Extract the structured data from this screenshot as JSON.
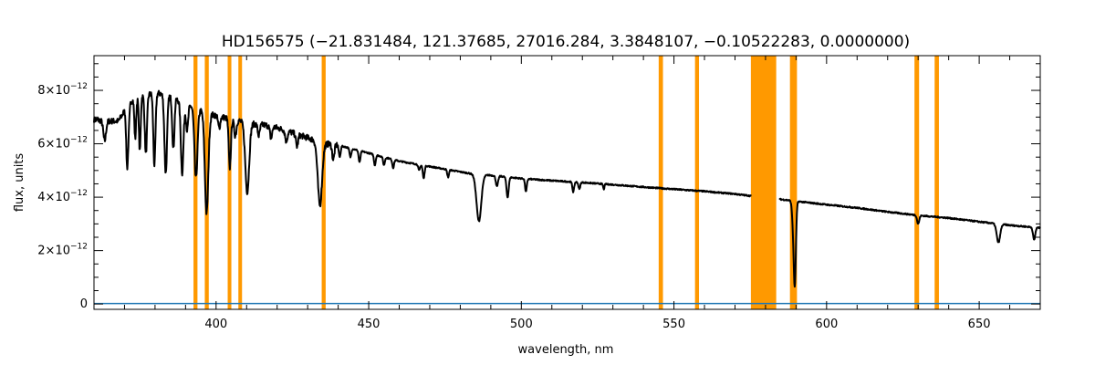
{
  "chart_data": {
    "type": "line",
    "title": "HD156575    (−21.831484, 121.37685, 27016.284, 3.3848107, −0.10522283, 0.0000000)",
    "xlabel": "wavelength, nm",
    "ylabel": "flux, units",
    "xlim": [
      360,
      670
    ],
    "ylim": [
      -2e-13,
      9.3e-12
    ],
    "x_ticks": [
      400,
      450,
      500,
      550,
      600,
      650
    ],
    "y_ticks": [
      {
        "value": 0,
        "label": "0"
      },
      {
        "value": 2e-12,
        "label": "2×10",
        "exp": "−12"
      },
      {
        "value": 4e-12,
        "label": "4×10",
        "exp": "−12"
      },
      {
        "value": 6e-12,
        "label": "6×10",
        "exp": "−12"
      },
      {
        "value": 8e-12,
        "label": "8×10",
        "exp": "−12"
      }
    ],
    "grid": false,
    "colors": {
      "spectrum": "#000000",
      "masks": "#ff9900",
      "error": "#1f77b4",
      "axes": "#000000"
    },
    "masked_regions": [
      [
        392.6,
        393.9
      ],
      [
        396.3,
        397.6
      ],
      [
        403.8,
        405.0
      ],
      [
        407.3,
        408.5
      ],
      [
        434.6,
        435.9
      ],
      [
        545.0,
        546.4
      ],
      [
        556.9,
        558.2
      ],
      [
        575.2,
        583.5
      ],
      [
        588.0,
        590.3
      ],
      [
        628.8,
        630.3
      ],
      [
        635.4,
        636.8
      ]
    ],
    "series": [
      {
        "kind": "spectrum",
        "continuum": [
          [
            360,
            6.9e-12
          ],
          [
            364,
            6.85e-12
          ],
          [
            368,
            6.85e-12
          ],
          [
            372,
            7.6e-12
          ],
          [
            376,
            7.8e-12
          ],
          [
            380,
            7.9e-12
          ],
          [
            384,
            7.85e-12
          ],
          [
            388,
            7.6e-12
          ],
          [
            392,
            7.4e-12
          ],
          [
            396,
            7.2e-12
          ],
          [
            400,
            7.05e-12
          ],
          [
            404,
            6.95e-12
          ],
          [
            408,
            6.85e-12
          ],
          [
            412,
            6.75e-12
          ],
          [
            416,
            6.7e-12
          ],
          [
            420,
            6.6e-12
          ],
          [
            424,
            6.45e-12
          ],
          [
            428,
            6.3e-12
          ],
          [
            432,
            6.15e-12
          ],
          [
            436,
            6e-12
          ],
          [
            440,
            5.95e-12
          ],
          [
            445,
            5.8e-12
          ],
          [
            450,
            5.65e-12
          ],
          [
            455,
            5.5e-12
          ],
          [
            460,
            5.35e-12
          ],
          [
            465,
            5.25e-12
          ],
          [
            470,
            5.15e-12
          ],
          [
            475,
            5.05e-12
          ],
          [
            480,
            4.95e-12
          ],
          [
            485,
            4.85e-12
          ],
          [
            490,
            4.82e-12
          ],
          [
            500,
            4.7e-12
          ],
          [
            510,
            4.62e-12
          ],
          [
            520,
            4.55e-12
          ],
          [
            530,
            4.47e-12
          ],
          [
            540,
            4.38e-12
          ],
          [
            550,
            4.3e-12
          ],
          [
            560,
            4.22e-12
          ],
          [
            570,
            4.12e-12
          ],
          [
            575,
            4.05e-12
          ],
          [
            585,
            3.92e-12
          ],
          [
            590,
            3.85e-12
          ],
          [
            600,
            3.72e-12
          ],
          [
            610,
            3.6e-12
          ],
          [
            620,
            3.45e-12
          ],
          [
            630,
            3.32e-12
          ],
          [
            640,
            3.22e-12
          ],
          [
            650,
            3.08e-12
          ],
          [
            660,
            2.95e-12
          ],
          [
            670,
            2.85e-12
          ]
        ],
        "gap": [
          575.5,
          584.5
        ],
        "absorption_lines": [
          [
            363.5,
            6.1e-12,
            0.6
          ],
          [
            370.8,
            5.8e-12,
            0.4
          ],
          [
            371.2,
            6.3e-12,
            0.5
          ],
          [
            373.5,
            6.2e-12,
            0.4
          ],
          [
            375.0,
            5.7e-12,
            0.4
          ],
          [
            377.0,
            5.6e-12,
            0.5
          ],
          [
            379.8,
            5.2e-12,
            0.5
          ],
          [
            383.5,
            4.9e-12,
            0.6
          ],
          [
            386.0,
            5.8e-12,
            0.5
          ],
          [
            388.9,
            4.9e-12,
            0.6
          ],
          [
            390.5,
            6.5e-12,
            0.5
          ],
          [
            393.4,
            4.7e-12,
            0.7
          ],
          [
            396.9,
            3.4e-12,
            0.8
          ],
          [
            401.0,
            6.6e-12,
            0.5
          ],
          [
            404.5,
            5.1e-12,
            0.5
          ],
          [
            406.3,
            6.3e-12,
            0.5
          ],
          [
            410.2,
            4.2e-12,
            0.9
          ],
          [
            414.0,
            6.3e-12,
            0.5
          ],
          [
            418.0,
            6.2e-12,
            0.5
          ],
          [
            423.0,
            6.1e-12,
            0.5
          ],
          [
            426.5,
            5.9e-12,
            0.5
          ],
          [
            434.0,
            3.7e-12,
            1.0
          ],
          [
            438.4,
            5.4e-12,
            0.5
          ],
          [
            440.5,
            5.5e-12,
            0.4
          ],
          [
            444.0,
            5.5e-12,
            0.4
          ],
          [
            447.0,
            5.3e-12,
            0.4
          ],
          [
            452.0,
            5.2e-12,
            0.4
          ],
          [
            455.0,
            5.2e-12,
            0.4
          ],
          [
            458.0,
            5.1e-12,
            0.4
          ],
          [
            466.5,
            5e-12,
            0.4
          ],
          [
            468.0,
            4.7e-12,
            0.4
          ],
          [
            476.0,
            4.75e-12,
            0.4
          ],
          [
            486.1,
            3.1e-12,
            1.1
          ],
          [
            492.0,
            4.4e-12,
            0.5
          ],
          [
            495.5,
            4e-12,
            0.5
          ],
          [
            501.5,
            4.2e-12,
            0.4
          ],
          [
            517.0,
            4.2e-12,
            0.4
          ],
          [
            519.0,
            4.3e-12,
            0.4
          ],
          [
            527.0,
            4.3e-12,
            0.3
          ],
          [
            589.0,
            3.2e-12,
            0.5
          ],
          [
            589.6,
            8e-13,
            0.5
          ],
          [
            630.0,
            3e-12,
            0.5
          ],
          [
            656.3,
            2.3e-12,
            0.8
          ],
          [
            668.0,
            2.4e-12,
            0.5
          ]
        ]
      },
      {
        "kind": "error",
        "values": [
          [
            360,
            2e-14
          ],
          [
            670,
            2e-14
          ]
        ]
      }
    ]
  }
}
